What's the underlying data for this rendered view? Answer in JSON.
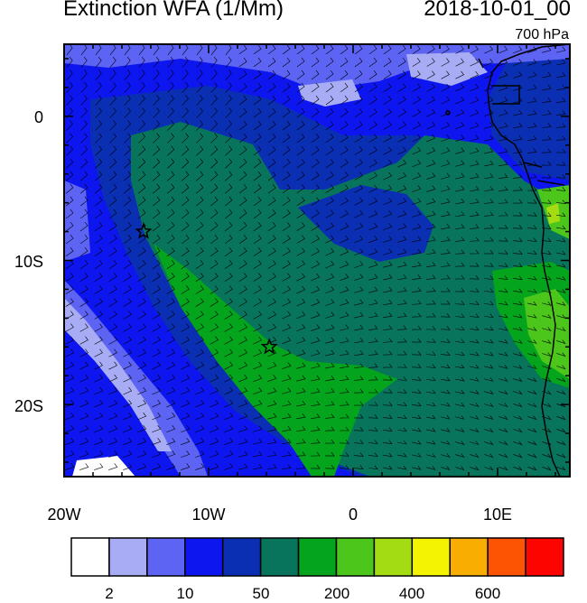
{
  "title_left": "Extinction WFA (1/Mm)",
  "title_right": "2018-10-01_00",
  "subtitle_right": "700 hPa",
  "x_ticks": [
    "20W",
    "10W",
    "0",
    "10E"
  ],
  "y_ticks": [
    "0",
    "10S",
    "20S"
  ],
  "colorbar": {
    "colors": [
      "#ffffff",
      "#a8acf4",
      "#5d63f3",
      "#0e16f0",
      "#0a2fb2",
      "#08745c",
      "#04a41c",
      "#4cc61a",
      "#a4dc14",
      "#f4f402",
      "#f9ad00",
      "#fc5402",
      "#fd0400"
    ],
    "labels": [
      "2",
      "10",
      "50",
      "200",
      "400",
      "600"
    ]
  },
  "markers": [
    {
      "name": "star-marker-1",
      "lon": -14.5,
      "lat": -8.0
    },
    {
      "name": "star-marker-2",
      "lon": -5.8,
      "lat": -16.0
    }
  ],
  "map": {
    "lon_range": [
      -20,
      15
    ],
    "lat_range": [
      -25,
      5
    ],
    "land_color": "#08745c"
  }
}
